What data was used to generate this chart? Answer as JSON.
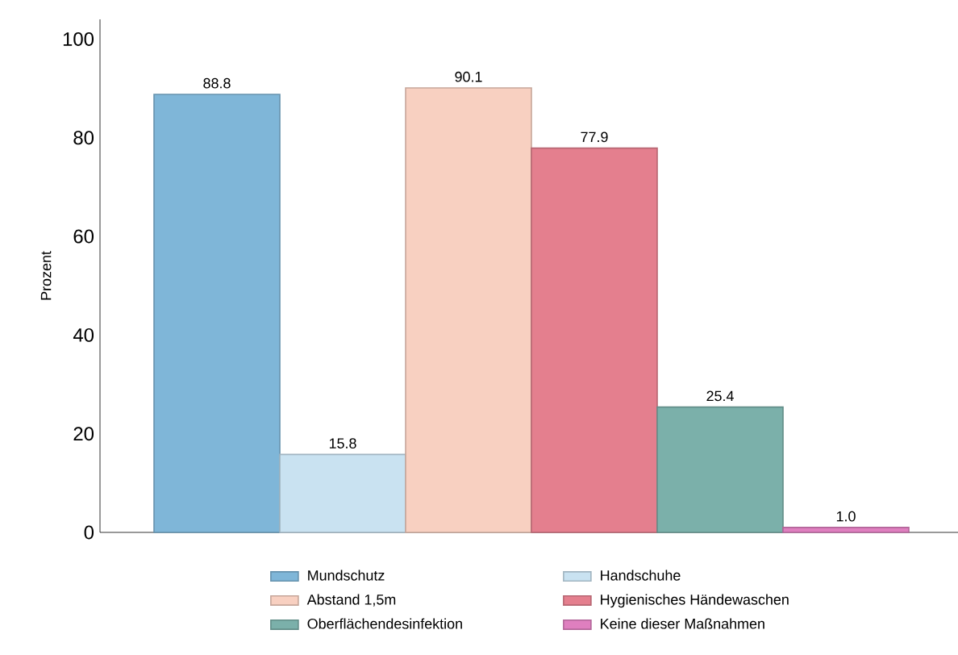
{
  "chart_data": {
    "type": "bar",
    "ylabel": "Prozent",
    "categories": [
      null
    ],
    "series": [
      {
        "name": "Mundschutz",
        "color": "#7fb6d8",
        "values": [
          88.8
        ],
        "value_labels": [
          "88.8"
        ]
      },
      {
        "name": "Handschuhe",
        "color": "#c9e2f1",
        "values": [
          15.8
        ],
        "value_labels": [
          "15.8"
        ]
      },
      {
        "name": "Abstand 1,5m",
        "color": "#f8d0c1",
        "values": [
          90.1
        ],
        "value_labels": [
          "90.1"
        ]
      },
      {
        "name": "Hygienisches Händewaschen",
        "color": "#e47f8e",
        "values": [
          77.9
        ],
        "value_labels": [
          "77.9"
        ]
      },
      {
        "name": "Oberflächendesinfektion",
        "color": "#7bb0aa",
        "values": [
          25.4
        ],
        "value_labels": [
          "25.4"
        ]
      },
      {
        "name": "Keine dieser Maßnahmen",
        "color": "#df7fbf",
        "values": [
          1.0
        ],
        "value_labels": [
          "1.0"
        ]
      }
    ],
    "ylim": [
      0,
      104
    ],
    "yticks": [
      0,
      20,
      40,
      60,
      80,
      100
    ],
    "grid": false,
    "legend": "bottom"
  }
}
